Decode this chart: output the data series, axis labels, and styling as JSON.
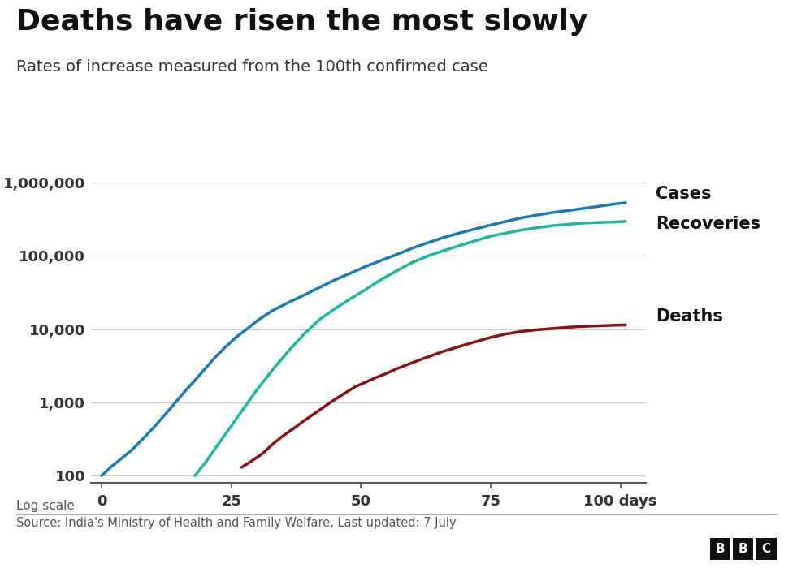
{
  "title": "Deaths have risen the most slowly",
  "subtitle": "Rates of increase measured from the 100th confirmed case",
  "footer_left": "Log scale",
  "source": "Source: India's Ministry of Health and Family Welfare, Last updated: 7 July",
  "bbc_label": "BBC",
  "xlim": [
    -2,
    105
  ],
  "ylim_log": [
    80,
    2500000
  ],
  "xticks": [
    0,
    25,
    50,
    75,
    100
  ],
  "yticks": [
    100,
    1000,
    10000,
    100000,
    1000000
  ],
  "ytick_labels": [
    "100",
    "1,000",
    "10,000",
    "100,000",
    "1,000,000"
  ],
  "cases_color": "#1a7ab5",
  "recoveries_color": "#1cb89a",
  "deaths_color": "#8b1010",
  "line_width": 2.5,
  "background_color": "#ffffff",
  "grid_color": "#cccccc",
  "title_fontsize": 26,
  "subtitle_fontsize": 14,
  "label_fontsize": 15,
  "cases_label": "Cases",
  "recoveries_label": "Recoveries",
  "deaths_label": "Deaths",
  "cases_x": [
    0,
    2,
    4,
    6,
    8,
    10,
    12,
    14,
    16,
    18,
    20,
    22,
    24,
    26,
    28,
    30,
    33,
    36,
    39,
    42,
    45,
    48,
    51,
    54,
    57,
    60,
    63,
    66,
    69,
    72,
    75,
    78,
    81,
    84,
    87,
    90,
    93,
    96,
    99,
    101
  ],
  "cases_y": [
    100,
    135,
    175,
    230,
    320,
    450,
    650,
    950,
    1400,
    2000,
    2900,
    4200,
    5800,
    7800,
    10000,
    13000,
    18000,
    23000,
    29000,
    37000,
    47000,
    58000,
    72000,
    87000,
    105000,
    128000,
    152000,
    178000,
    205000,
    232000,
    263000,
    295000,
    330000,
    360000,
    390000,
    415000,
    445000,
    475000,
    510000,
    530000
  ],
  "recoveries_x": [
    18,
    20,
    22,
    24,
    26,
    28,
    30,
    33,
    36,
    39,
    42,
    45,
    48,
    51,
    54,
    57,
    60,
    63,
    66,
    69,
    72,
    75,
    78,
    81,
    84,
    87,
    90,
    93,
    96,
    99,
    101
  ],
  "recoveries_y": [
    100,
    150,
    240,
    380,
    600,
    950,
    1500,
    2800,
    5000,
    8500,
    13500,
    19000,
    26000,
    35000,
    48000,
    63000,
    82000,
    100000,
    118000,
    138000,
    160000,
    185000,
    205000,
    225000,
    242000,
    258000,
    270000,
    280000,
    285000,
    290000,
    295000
  ],
  "deaths_x": [
    27,
    29,
    31,
    33,
    35,
    37,
    39,
    41,
    43,
    45,
    47,
    49,
    51,
    53,
    55,
    57,
    60,
    63,
    66,
    69,
    72,
    75,
    78,
    81,
    84,
    87,
    90,
    93,
    96,
    99,
    101
  ],
  "deaths_y": [
    130,
    160,
    200,
    270,
    350,
    440,
    560,
    700,
    880,
    1100,
    1350,
    1650,
    1900,
    2200,
    2500,
    2900,
    3500,
    4200,
    5000,
    5800,
    6700,
    7700,
    8600,
    9300,
    9800,
    10200,
    10600,
    10900,
    11100,
    11300,
    11400
  ]
}
